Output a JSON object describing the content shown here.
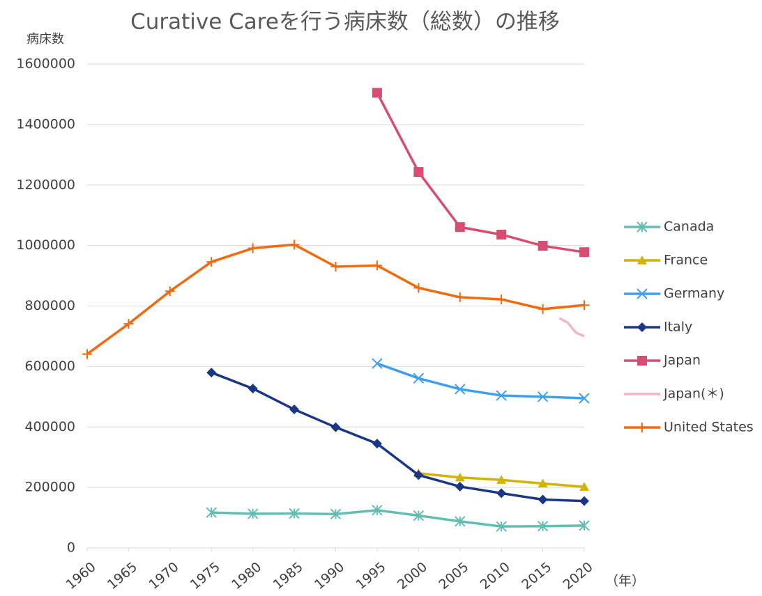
{
  "chart_data": {
    "type": "line",
    "title": "Curative Careを行う病床数（総数）の推移",
    "y_label": "病床数",
    "x_label": "（年）",
    "xlim": [
      1960,
      2020
    ],
    "xticks": [
      1960,
      1965,
      1970,
      1975,
      1980,
      1985,
      1990,
      1995,
      2000,
      2005,
      2010,
      2015,
      2020
    ],
    "ylim": [
      0,
      1600000
    ],
    "yticks": [
      0,
      200000,
      400000,
      600000,
      800000,
      1000000,
      1200000,
      1400000,
      1600000
    ],
    "grid": true,
    "legend": "right",
    "series": [
      {
        "name": "Canada",
        "color": "#62bdb3",
        "marker": "asterisk",
        "x": [
          1975,
          1980,
          1985,
          1990,
          1995,
          2000,
          2005,
          2010,
          2015,
          2020
        ],
        "values": [
          117000,
          113000,
          114000,
          112000,
          125000,
          107000,
          88000,
          71000,
          72000,
          74000
        ]
      },
      {
        "name": "France",
        "color": "#d4b300",
        "marker": "triangle",
        "x": [
          2000,
          2005,
          2010,
          2015,
          2020
        ],
        "values": [
          247000,
          233000,
          225000,
          213000,
          202000
        ]
      },
      {
        "name": "Germany",
        "color": "#3f9fee",
        "marker": "x",
        "x": [
          1995,
          2000,
          2005,
          2010,
          2015,
          2020
        ],
        "values": [
          610000,
          561000,
          525000,
          504000,
          500000,
          495000
        ]
      },
      {
        "name": "Italy",
        "color": "#1a3786",
        "marker": "diamond",
        "x": [
          1975,
          1980,
          1985,
          1990,
          1995,
          2000,
          2005,
          2010,
          2015,
          2020
        ],
        "values": [
          580000,
          527000,
          458000,
          399000,
          345000,
          241000,
          203000,
          181000,
          160000,
          155000
        ]
      },
      {
        "name": "Japan",
        "color": "#d94c71",
        "marker": "square",
        "x": [
          1995,
          2000,
          2005,
          2010,
          2015,
          2020
        ],
        "values": [
          1505000,
          1243000,
          1061000,
          1036000,
          999000,
          978000
        ]
      },
      {
        "name": "Japan(＊)",
        "color": "#f0b6c7",
        "marker": "none",
        "x": [
          2017,
          2018,
          2019,
          2020
        ],
        "values": [
          760000,
          745000,
          712000,
          700000
        ]
      },
      {
        "name": "United States",
        "color": "#f26a10",
        "marker": "plus",
        "x": [
          1960,
          1965,
          1970,
          1975,
          1980,
          1985,
          1990,
          1995,
          2000,
          2005,
          2010,
          2015,
          2020
        ],
        "values": [
          641000,
          741000,
          849000,
          946000,
          991000,
          1003000,
          930000,
          934000,
          860000,
          829000,
          822000,
          790000,
          803000
        ]
      }
    ]
  }
}
